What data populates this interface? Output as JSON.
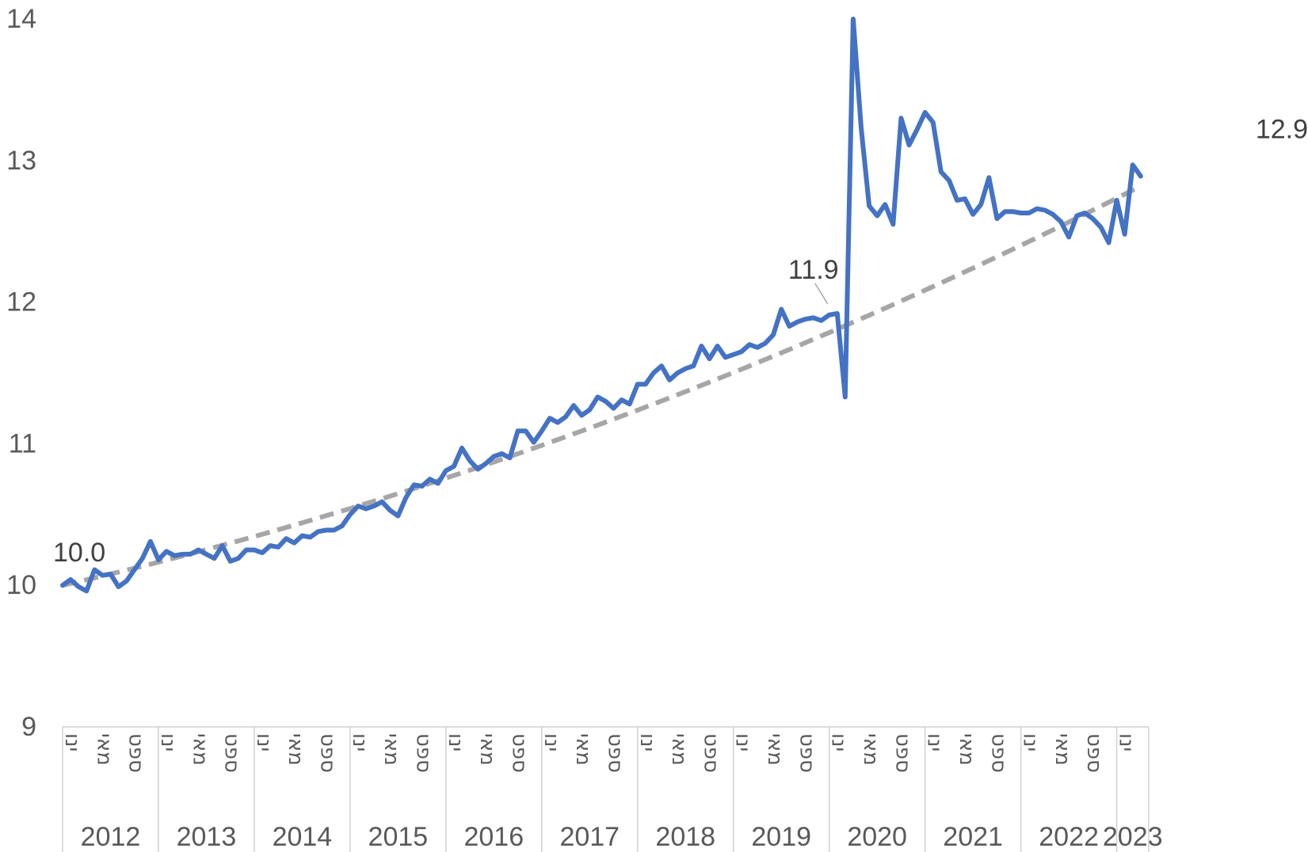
{
  "chart_data": {
    "type": "line",
    "title": "",
    "xlabel": "",
    "ylabel": "",
    "ylim": [
      9,
      14
    ],
    "y_ticks": [
      "9",
      "10",
      "11",
      "12",
      "13",
      "14"
    ],
    "grid": false,
    "legend": "none",
    "month_labels": [
      "ינו",
      "מאי",
      "ספט"
    ],
    "years": [
      "2012",
      "2013",
      "2014",
      "2015",
      "2016",
      "2017",
      "2018",
      "2019",
      "2020",
      "2021",
      "2022",
      "2023"
    ],
    "series": [
      {
        "color": "#4472C4",
        "values": [
          10.0,
          10.04,
          9.99,
          9.96,
          10.11,
          10.07,
          10.08,
          9.99,
          10.03,
          10.11,
          10.19,
          10.31,
          10.18,
          10.24,
          10.21,
          10.22,
          10.22,
          10.25,
          10.22,
          10.19,
          10.28,
          10.17,
          10.19,
          10.25,
          10.25,
          10.23,
          10.28,
          10.27,
          10.33,
          10.3,
          10.35,
          10.34,
          10.38,
          10.39,
          10.39,
          10.42,
          10.5,
          10.56,
          10.54,
          10.56,
          10.59,
          10.53,
          10.49,
          10.62,
          10.71,
          10.7,
          10.75,
          10.72,
          10.81,
          10.84,
          10.97,
          10.88,
          10.82,
          10.86,
          10.91,
          10.93,
          10.9,
          11.09,
          11.09,
          11.01,
          11.09,
          11.18,
          11.15,
          11.19,
          11.27,
          11.2,
          11.24,
          11.33,
          11.3,
          11.25,
          11.31,
          11.28,
          11.42,
          11.42,
          11.5,
          11.55,
          11.45,
          11.5,
          11.53,
          11.55,
          11.69,
          11.6,
          11.69,
          11.61,
          11.63,
          11.65,
          11.7,
          11.68,
          11.71,
          11.77,
          11.95,
          11.83,
          11.86,
          11.88,
          11.89,
          11.87,
          11.91,
          11.92,
          11.33,
          14.0,
          13.23,
          12.68,
          12.61,
          12.69,
          12.55,
          13.3,
          13.11,
          13.22,
          13.34,
          13.27,
          12.92,
          12.86,
          12.72,
          12.73,
          12.62,
          12.69,
          12.88,
          12.59,
          12.64,
          12.64,
          12.63,
          12.63,
          12.66,
          12.65,
          12.62,
          12.57,
          12.46,
          12.61,
          12.63,
          12.59,
          12.53,
          12.42,
          12.72,
          12.48,
          12.97,
          12.89
        ]
      },
      {
        "type": "trend",
        "color": "#A6A6A6",
        "dashed": true,
        "start": 10.0,
        "end": 12.82
      }
    ],
    "annotations": [
      {
        "text": "10.0",
        "point_index": 0
      },
      {
        "text": "11.9",
        "point_index": 97
      },
      {
        "text": "12.9",
        "point_index": 135
      }
    ]
  }
}
